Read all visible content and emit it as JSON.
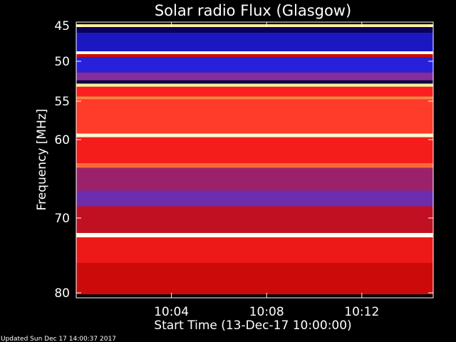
{
  "chart_data": {
    "type": "heatmap",
    "title": "Solar radio Flux (Glasgow)",
    "ylabel": "Frequency [MHz]",
    "xlabel": "Start Time (13-Dec-17 10:00:00)",
    "footer": "Updated Sun Dec 17 14:00:37 2017",
    "x_unit": "time of day (hh:mm)",
    "xlim": [
      "10:00",
      "10:15"
    ],
    "x_ticks": [
      "10:04",
      "10:08",
      "10:12"
    ],
    "y_ticks": [
      45,
      50,
      55,
      60,
      70,
      80
    ],
    "y_tick_labels": [
      "45",
      "50",
      "55",
      "60",
      "70",
      "80"
    ],
    "y_scale": "reciprocal-like (non-linear, compressed toward higher frequency)",
    "ylim": [
      45,
      80
    ],
    "colormap": [
      "#000000",
      "#0a0060",
      "#2020e0",
      "#8030a0",
      "#cc0a0a",
      "#ff2020",
      "#ff8040",
      "#ffe880",
      "#ffffff"
    ],
    "bands": [
      {
        "from": 44.8,
        "to": 45.2,
        "intensity": 0.9
      },
      {
        "from": 45.2,
        "to": 46.0,
        "intensity": 0.12
      },
      {
        "from": 46.0,
        "to": 48.6,
        "intensity": 0.22
      },
      {
        "from": 48.6,
        "to": 49.0,
        "intensity": 0.97
      },
      {
        "from": 49.0,
        "to": 49.4,
        "intensity": 0.5
      },
      {
        "from": 49.4,
        "to": 51.4,
        "intensity": 0.26
      },
      {
        "from": 51.4,
        "to": 52.4,
        "intensity": 0.38
      },
      {
        "from": 52.4,
        "to": 52.8,
        "intensity": 0.08
      },
      {
        "from": 52.8,
        "to": 53.2,
        "intensity": 0.9
      },
      {
        "from": 53.2,
        "to": 54.4,
        "intensity": 0.62
      },
      {
        "from": 54.4,
        "to": 54.8,
        "intensity": 0.75
      },
      {
        "from": 54.8,
        "to": 59.2,
        "intensity": 0.66
      },
      {
        "from": 59.2,
        "to": 59.7,
        "intensity": 0.95
      },
      {
        "from": 59.7,
        "to": 63.0,
        "intensity": 0.6
      },
      {
        "from": 63.0,
        "to": 63.6,
        "intensity": 0.72
      },
      {
        "from": 63.6,
        "to": 66.5,
        "intensity": 0.42
      },
      {
        "from": 66.5,
        "to": 68.5,
        "intensity": 0.35
      },
      {
        "from": 68.5,
        "to": 72.0,
        "intensity": 0.48
      },
      {
        "from": 72.0,
        "to": 72.6,
        "intensity": 0.98
      },
      {
        "from": 72.6,
        "to": 76.0,
        "intensity": 0.58
      },
      {
        "from": 76.0,
        "to": 80.2,
        "intensity": 0.5
      }
    ]
  }
}
